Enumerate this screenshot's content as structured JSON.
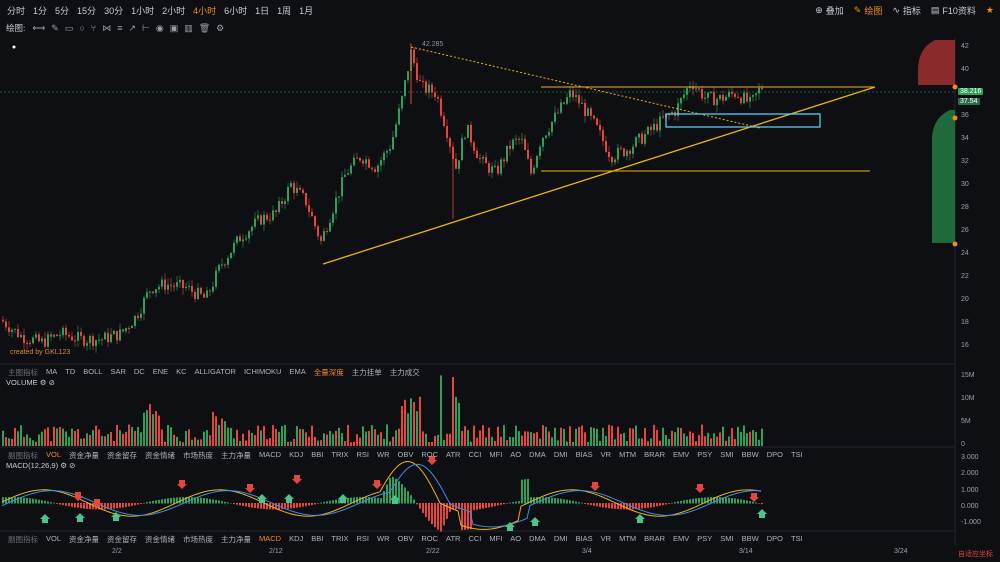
{
  "toolbar": {
    "timeframes": [
      "分时",
      "1分",
      "5分",
      "15分",
      "30分",
      "1小时",
      "2小时",
      "4小时",
      "6小时",
      "1日",
      "1周",
      "1月"
    ],
    "active_timeframe": "4小时",
    "right_items": [
      {
        "label": "叠加",
        "icon": "overlay-icon"
      },
      {
        "label": "绘图",
        "icon": "draw-icon",
        "active": true
      },
      {
        "label": "指标",
        "icon": "indicator-icon"
      },
      {
        "label": "F10资料",
        "icon": "f10-icon"
      }
    ],
    "draw_label": "绘图:"
  },
  "main_chart": {
    "peak_label": "42.285",
    "last_price_tag": "38.216",
    "second_tag": "37.54",
    "watermark": "created by GKL123",
    "price_axis": [
      "42",
      "40",
      "38",
      "36",
      "34",
      "32",
      "30",
      "28",
      "26",
      "24",
      "22",
      "20",
      "18",
      "16"
    ],
    "colors": {
      "up": "#2fa05a",
      "down": "#e5453a",
      "trend": "#f0b20d",
      "box": "#5ac8f0"
    }
  },
  "main_indicator_tabs": {
    "label": "主图指标",
    "items": [
      "MA",
      "TD",
      "BOLL",
      "SAR",
      "DC",
      "ENE",
      "KC",
      "ALLIGATOR",
      "ICHIMOKU",
      "EMA",
      "全量深度",
      "主力挂单",
      "主力成交"
    ],
    "active": "全量深度"
  },
  "volume": {
    "title": "VOLUME",
    "axis": [
      "15M",
      "10M",
      "5M",
      "0"
    ]
  },
  "sub_indicator_tabs_1": {
    "label": "副图指标",
    "items": [
      "VOL",
      "资金净量",
      "资金留存",
      "资金情绪",
      "市场热度",
      "主力净量",
      "MACD",
      "KDJ",
      "BBI",
      "TRIX",
      "RSI",
      "WR",
      "OBV",
      "ROC",
      "ATR",
      "CCI",
      "MFI",
      "AO",
      "DMA",
      "DMI",
      "BIAS",
      "VR",
      "MTM",
      "BRAR",
      "EMV",
      "PSY",
      "SMI",
      "BBW",
      "DPO",
      "TSI"
    ],
    "active": "VOL"
  },
  "macd": {
    "title": "MACD(12,26,9)",
    "axis": [
      "3.000",
      "2.000",
      "1.000",
      "0.000",
      "-1.000"
    ]
  },
  "sub_indicator_tabs_2": {
    "label": "副图指标",
    "items": [
      "VOL",
      "资金净量",
      "资金留存",
      "资金情绪",
      "市场热度",
      "主力净量",
      "MACD",
      "KDJ",
      "BBI",
      "TRIX",
      "RSI",
      "WR",
      "OBV",
      "ROC",
      "ATR",
      "CCI",
      "MFI",
      "AO",
      "DMA",
      "DMI",
      "BIAS",
      "VR",
      "MTM",
      "BRAR",
      "EMV",
      "PSY",
      "SMI",
      "BBW",
      "DPO",
      "TSI"
    ],
    "active": "MACD"
  },
  "date_axis": [
    "2/2",
    "2/12",
    "2/22",
    "3/4",
    "3/14",
    "3/24"
  ],
  "adapt_label": "自适应坐标"
}
